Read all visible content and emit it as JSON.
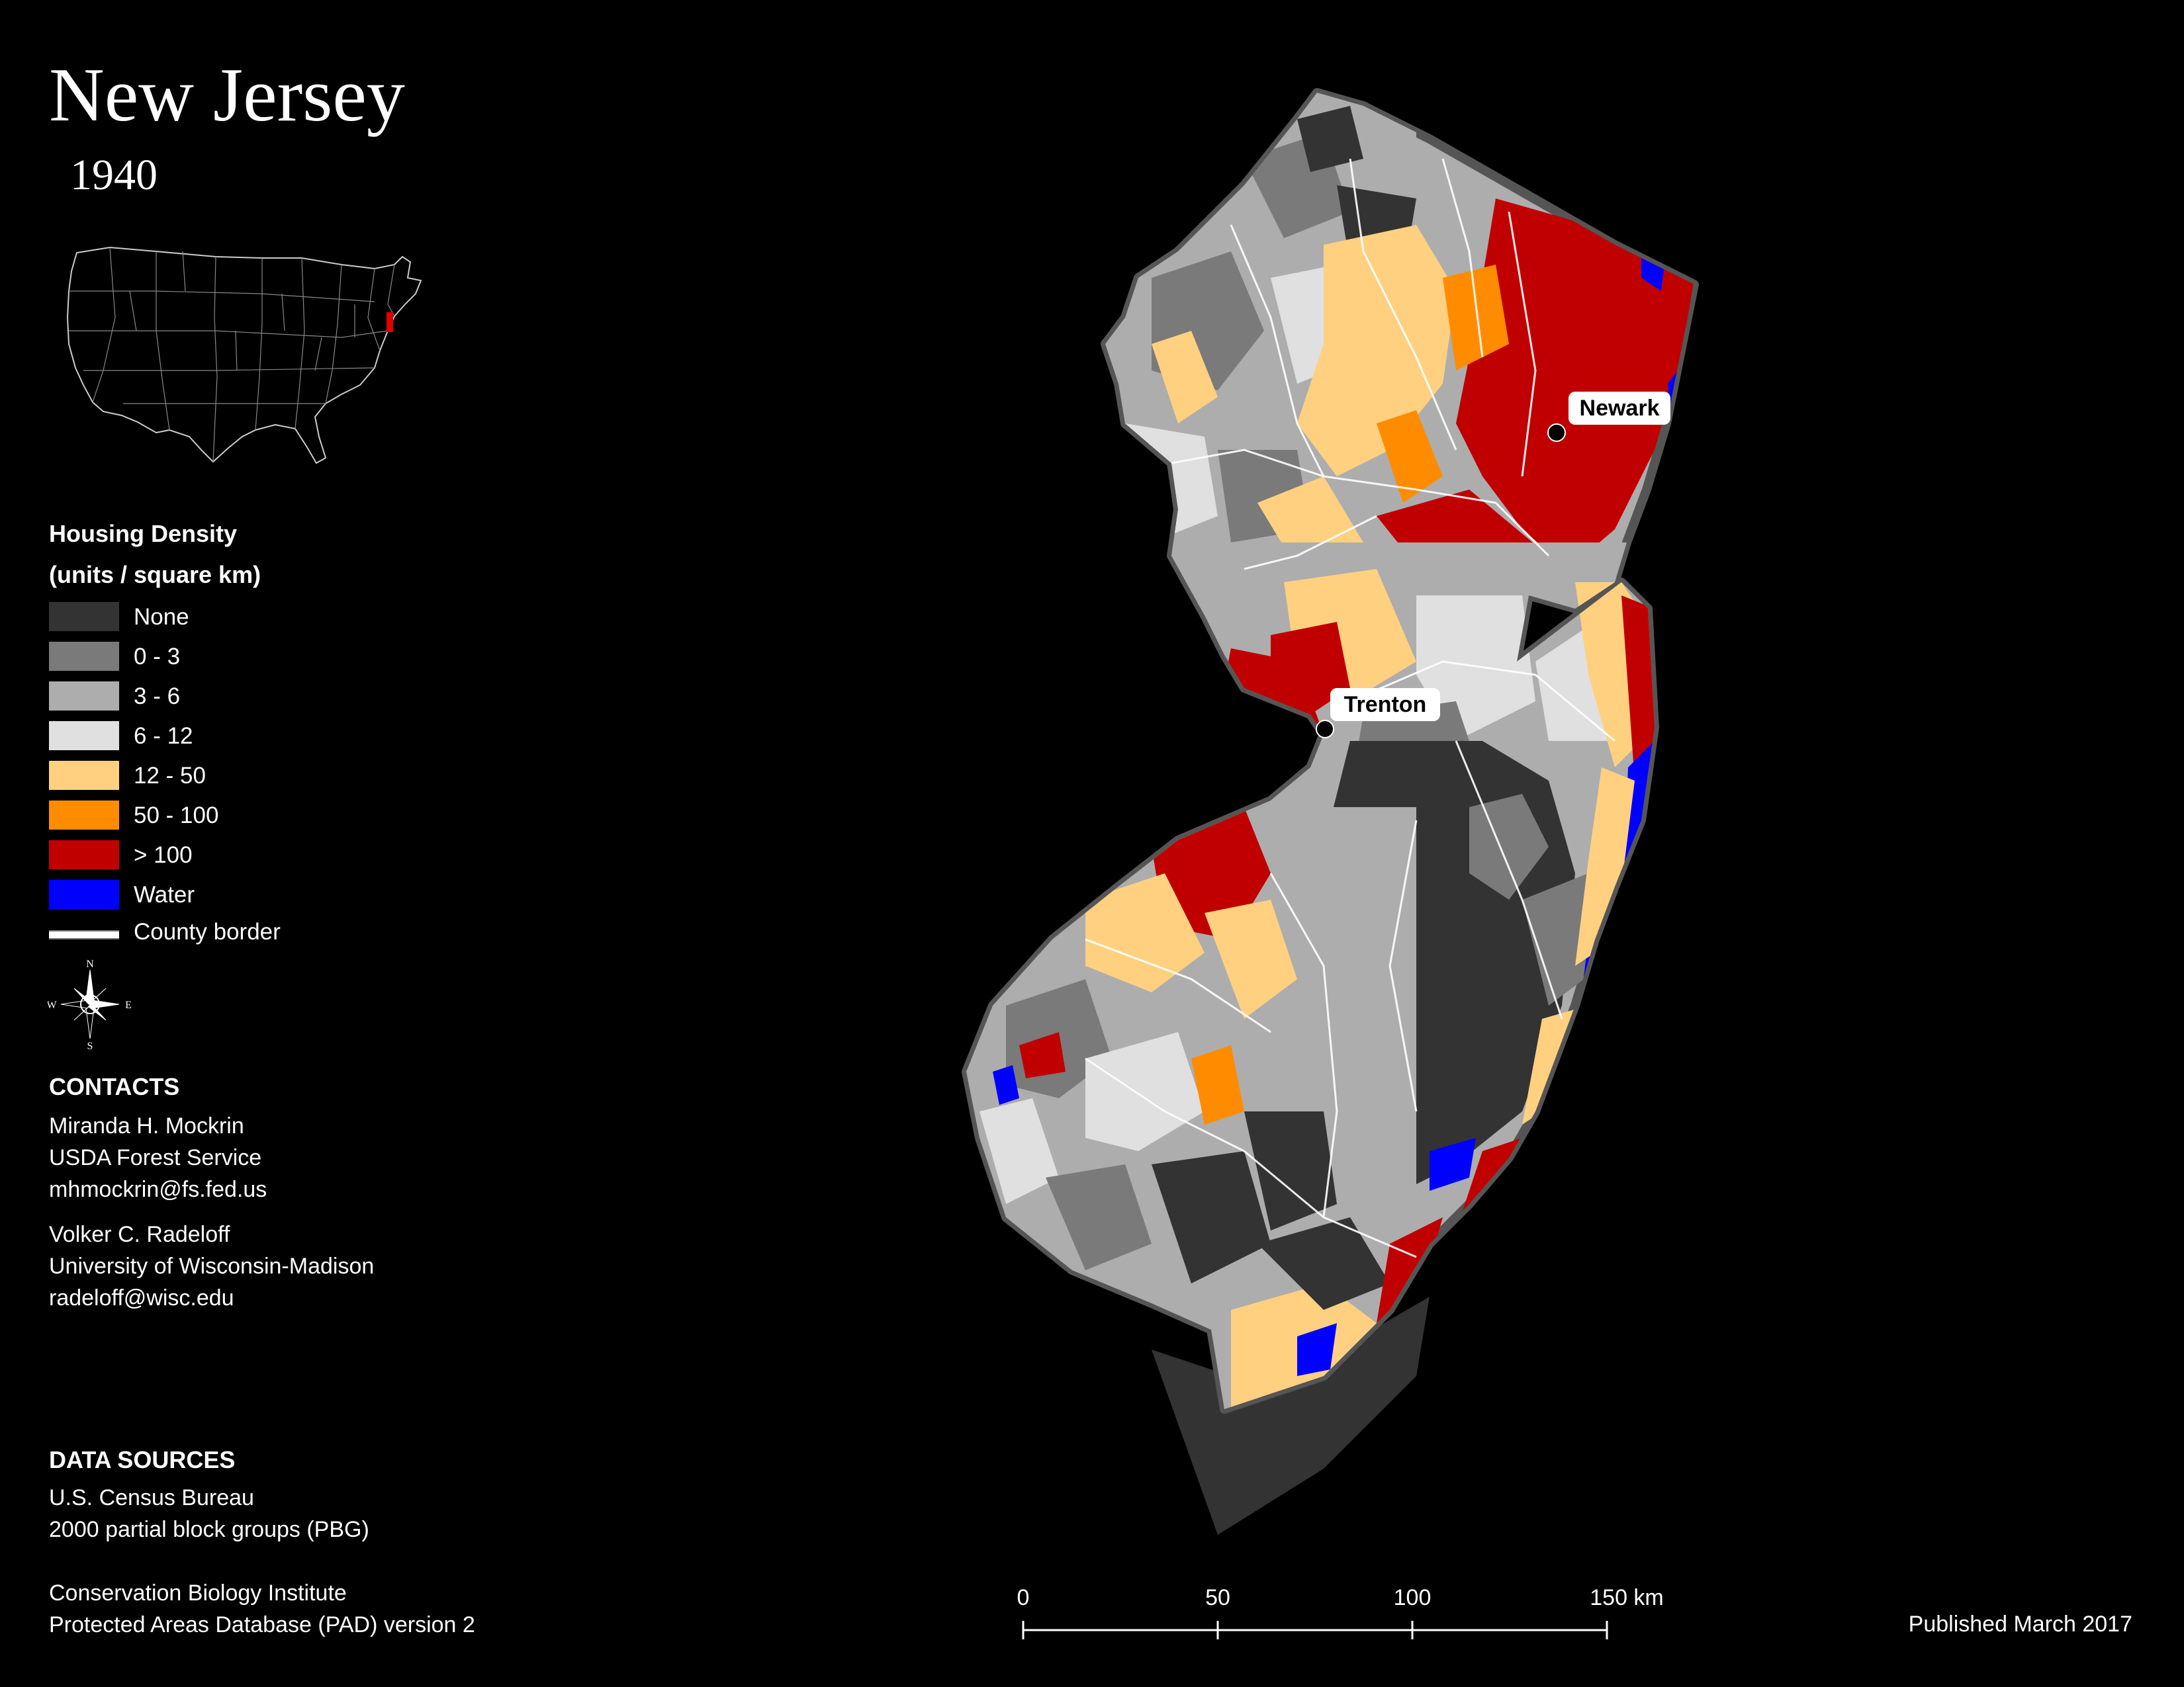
{
  "title": "New Jersey",
  "year": "1940",
  "legend": {
    "title_line1": "Housing Density",
    "title_line2": "(units / square km)",
    "items": [
      {
        "label": "None",
        "color": "#333333"
      },
      {
        "label": "0 - 3",
        "color": "#7a7a7a"
      },
      {
        "label": "3 - 6",
        "color": "#adadad"
      },
      {
        "label": "6 - 12",
        "color": "#e0e0e0"
      },
      {
        "label": "12 - 50",
        "color": "#ffd080"
      },
      {
        "label": "50 - 100",
        "color": "#ff8c00"
      },
      {
        "label": "> 100",
        "color": "#c00000"
      },
      {
        "label": "Water",
        "color": "#0000ff"
      }
    ],
    "border_label": "County border"
  },
  "compass": {
    "n": "N",
    "s": "S",
    "e": "E",
    "w": "W"
  },
  "contacts": {
    "heading": "CONTACTS",
    "people": [
      {
        "name": "Miranda H. Mockrin",
        "org": "USDA Forest Service",
        "email": "mhmockrin@fs.fed.us"
      },
      {
        "name": "Volker C. Radeloff",
        "org": "University of Wisconsin-Madison",
        "email": "radeloff@wisc.edu"
      }
    ]
  },
  "data_sources": {
    "heading": "DATA SOURCES",
    "lines": [
      "U.S. Census Bureau",
      "2000 partial block groups (PBG)",
      "Conservation Biology Institute",
      "Protected Areas Database (PAD) version 2"
    ]
  },
  "cities": [
    {
      "name": "Newark"
    },
    {
      "name": "Trenton"
    }
  ],
  "scale_bar": {
    "ticks": [
      "0",
      "50",
      "100",
      "150 km"
    ]
  },
  "published": "Published March 2017"
}
